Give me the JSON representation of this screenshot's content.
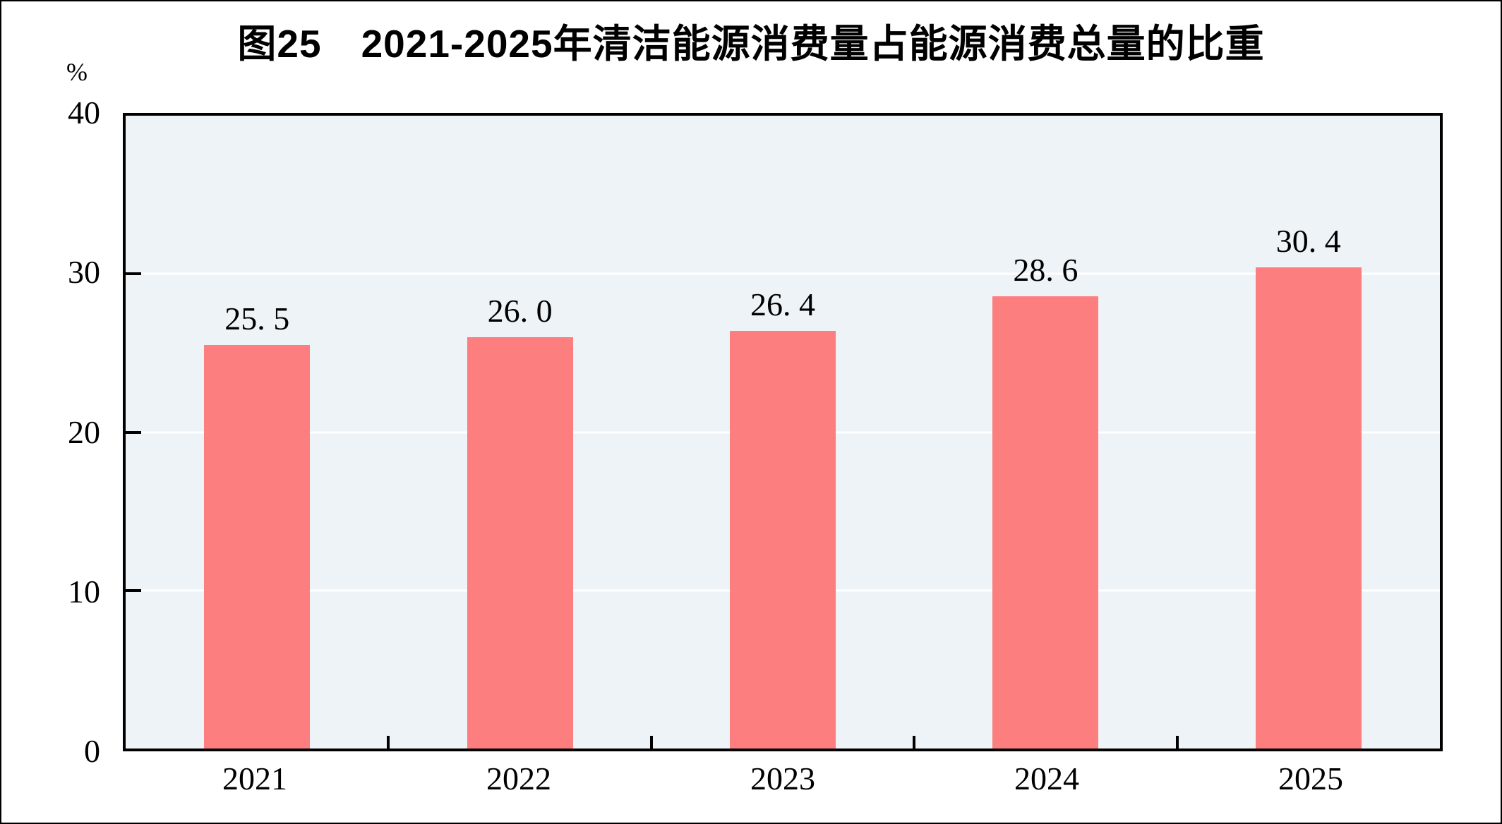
{
  "chart_data": {
    "type": "bar",
    "title": "图25　2021-2025年清洁能源消费量占能源消费总量的比重",
    "unit_label": "%",
    "categories": [
      "2021",
      "2022",
      "2023",
      "2024",
      "2025"
    ],
    "values": [
      25.5,
      26.0,
      26.4,
      28.6,
      30.4
    ],
    "value_labels": [
      "25. 5",
      "26. 0",
      "26. 4",
      "28. 6",
      "30. 4"
    ],
    "xlabel": "",
    "ylabel": "",
    "ylim": [
      0,
      40
    ],
    "yticks": [
      40,
      30,
      20,
      10,
      0
    ],
    "gridlines_at": [
      30,
      20,
      10
    ],
    "grid": "horizontal",
    "legend": "none",
    "colors": {
      "bar_fill": "#FC7E7E",
      "plot_background": "#EDF3F7",
      "gridline": "#FFFFFF",
      "axis_frame": "#000000",
      "text": "#000000",
      "page_background": "#FFFFFF"
    }
  }
}
